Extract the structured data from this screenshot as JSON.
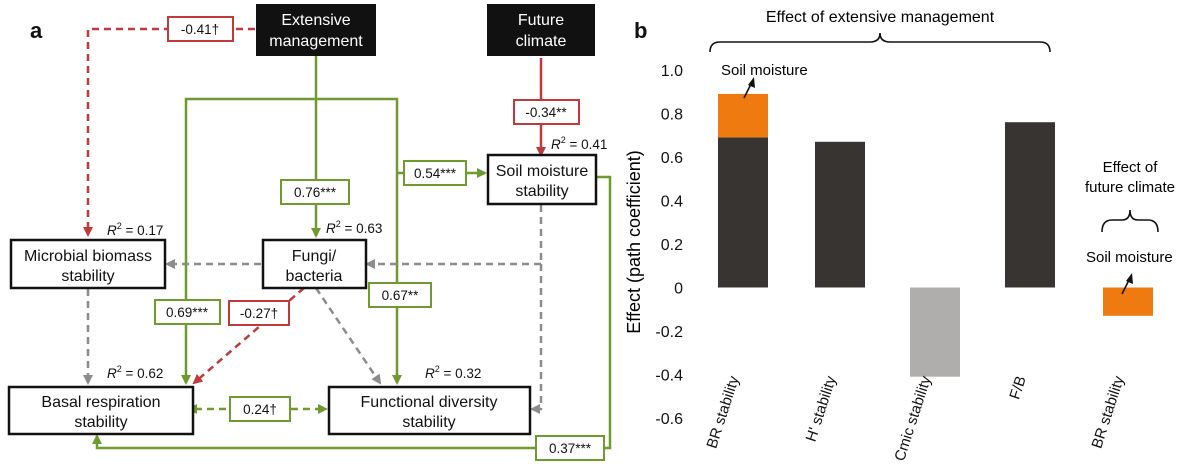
{
  "panels": {
    "a": "a",
    "b": "b"
  },
  "diagram": {
    "headers": {
      "extensive": [
        "Extensive",
        "management"
      ],
      "future": [
        "Future",
        "climate"
      ]
    },
    "nodes": {
      "microbial": [
        "Microbial biomass",
        "stability"
      ],
      "fungi": [
        "Fungi/",
        "bacteria"
      ],
      "soil": [
        "Soil moisture",
        "stability"
      ],
      "basal": [
        "Basal respiration",
        "stability"
      ],
      "functional": [
        "Functional diversity",
        "stability"
      ]
    },
    "r2": {
      "microbial": "0.17",
      "fungi": "0.63",
      "soil": "0.41",
      "basal": "0.62",
      "functional": "0.32",
      "prefix": "R",
      "sup": "2",
      "eq": " = "
    },
    "coefficients": {
      "em_microbial": "-0.41†",
      "fc_soil": "-0.34**",
      "em_soil": "0.54***",
      "em_fungi": "0.76***",
      "em_basal": "0.69***",
      "fungi_basal": "-0.27†",
      "em_functional": "0.67**",
      "basal_functional": "0.24†",
      "soil_basal": "0.37***"
    },
    "colors": {
      "positive": "#6e9a2f",
      "negative": "#c0393b",
      "nonsig": "#8c8c8c",
      "header_bg": "#111111"
    }
  },
  "chart_data": {
    "type": "bar",
    "ylabel": "Effect (path coefficient)",
    "ylim": [
      -0.6,
      1.0
    ],
    "yticks": [
      "1.0",
      "0.8",
      "0.6",
      "0.4",
      "0.2",
      "0",
      "-0.2",
      "-0.4",
      "-0.6"
    ],
    "categories": [
      "BR stability",
      "H' stability",
      "Cmic stability",
      "F/B",
      "BR stability"
    ],
    "bars": [
      {
        "base": 0.69,
        "extra": 0.2
      },
      {
        "base": 0.67,
        "extra": 0
      },
      {
        "base": -0.41,
        "extra": 0
      },
      {
        "base": 0.76,
        "extra": 0
      },
      {
        "base": -0.13,
        "extra": 0
      }
    ],
    "bar_colors": [
      "#383431",
      "#383431",
      "#b0aeac",
      "#383431",
      "#ee7a10"
    ],
    "extra_color": "#ee7a10",
    "annotations": {
      "group_extensive": "Effect of extensive management",
      "group_future": [
        "Effect of",
        "future climate"
      ],
      "soil_moisture_1": "Soil moisture",
      "soil_moisture_2": "Soil moisture"
    }
  }
}
